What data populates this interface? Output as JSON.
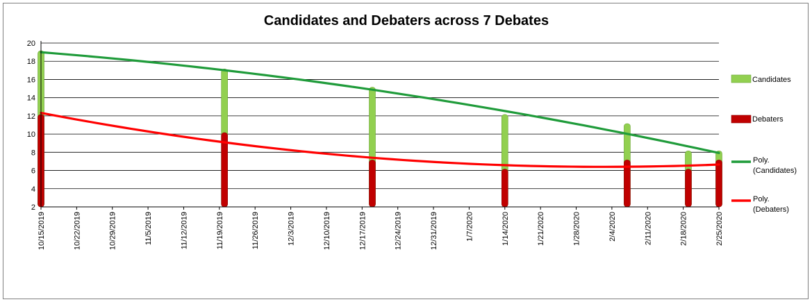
{
  "chart_data": {
    "type": "bar",
    "title": "Candidates and Debaters across 7 Debates",
    "xlabel": "",
    "ylabel": "",
    "ylim": [
      2,
      20
    ],
    "y_ticks": [
      "2",
      "4",
      "6",
      "8",
      "10",
      "12",
      "14",
      "16",
      "18",
      "20"
    ],
    "x_range": [
      "10/15/2019",
      "2/25/2020"
    ],
    "x_ticks": [
      "10/15/2019",
      "10/22/2019",
      "10/29/2019",
      "11/5/2019",
      "11/12/2019",
      "11/19/2019",
      "11/26/2019",
      "12/3/2019",
      "12/10/2019",
      "12/17/2019",
      "12/24/2019",
      "12/31/2019",
      "1/7/2020",
      "1/14/2020",
      "1/21/2020",
      "1/28/2020",
      "2/4/2020",
      "2/11/2020",
      "2/18/2020",
      "2/25/2020"
    ],
    "grid": true,
    "legend_position": "right",
    "debate_dates": [
      "10/15/2019",
      "11/20/2019",
      "12/19/2019",
      "1/14/2020",
      "2/7/2020",
      "2/19/2020",
      "2/25/2020"
    ],
    "series": [
      {
        "name": "Candidates",
        "kind": "bar",
        "color": "#92d050",
        "values": [
          19,
          17,
          15,
          12,
          11,
          8,
          8
        ]
      },
      {
        "name": "Debaters",
        "kind": "bar",
        "color": "#c00000",
        "values": [
          12,
          10,
          7,
          6,
          7,
          6,
          7
        ]
      }
    ],
    "trendlines": [
      {
        "name": "Poly. (Candidates)",
        "color": "#1f9b3a",
        "order": 2,
        "of": "Candidates"
      },
      {
        "name": "Poly. (Debaters)",
        "color": "#ff0000",
        "order": 2,
        "of": "Debaters"
      }
    ]
  }
}
